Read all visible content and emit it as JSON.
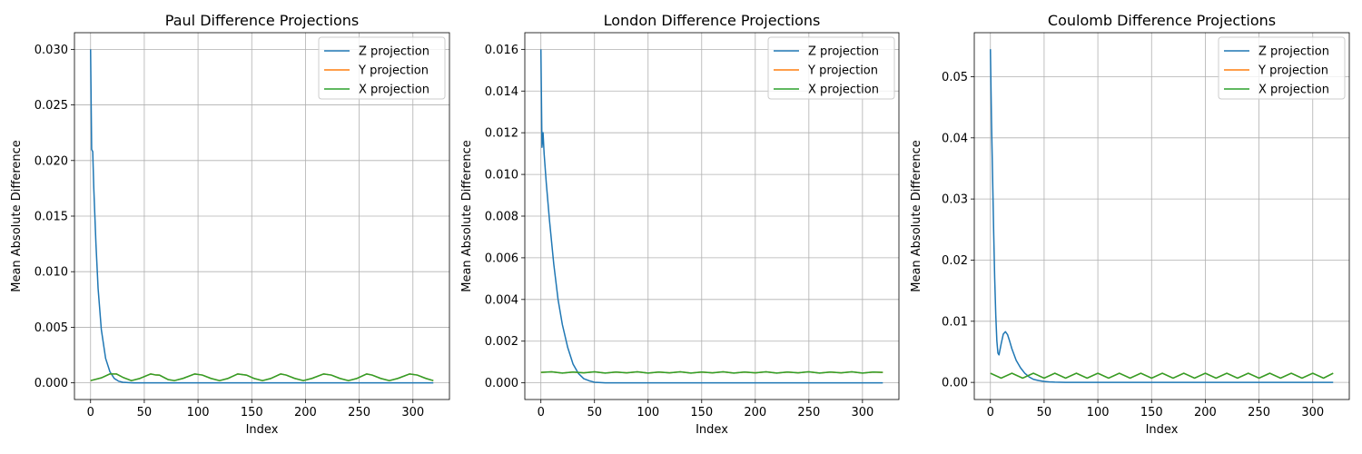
{
  "figure": {
    "background": "#ffffff"
  },
  "chart_data": [
    {
      "type": "line",
      "title": "Paul Difference Projections",
      "xlabel": "Index",
      "ylabel": "Mean Absolute Difference",
      "xlim": [
        -15,
        334
      ],
      "ylim": [
        -0.0015,
        0.0315
      ],
      "xticks": [
        0,
        50,
        100,
        150,
        200,
        250,
        300
      ],
      "xtick_labels": [
        "0",
        "50",
        "100",
        "150",
        "200",
        "250",
        "300"
      ],
      "yticks": [
        0.0,
        0.005,
        0.01,
        0.015,
        0.02,
        0.025,
        0.03
      ],
      "ytick_labels": [
        "0.000",
        "0.005",
        "0.010",
        "0.015",
        "0.020",
        "0.025",
        "0.030"
      ],
      "grid": true,
      "legend_position": "top-right",
      "series": [
        {
          "name": "Z projection",
          "color": "#1f77b4",
          "x": [
            0,
            1,
            2,
            3,
            5,
            7,
            10,
            14,
            18,
            22,
            26,
            30,
            35,
            40,
            60,
            100,
            150,
            200,
            250,
            300,
            319
          ],
          "y": [
            0.03,
            0.021,
            0.0208,
            0.0175,
            0.0125,
            0.0085,
            0.0048,
            0.0022,
            0.001,
            0.0004,
            0.00015,
            5e-05,
            2e-05,
            0.0,
            0.0,
            0.0,
            0.0,
            0.0,
            0.0,
            0.0,
            0.0
          ]
        },
        {
          "name": "Y projection",
          "color": "#ff7f0e",
          "x": [
            0,
            10,
            18,
            24,
            30,
            38,
            46,
            56,
            60,
            64,
            72,
            78,
            86,
            97,
            104,
            112,
            120,
            128,
            137,
            145,
            152,
            160,
            168,
            177,
            182,
            190,
            198,
            206,
            217,
            224,
            232,
            240,
            248,
            257,
            262,
            270,
            278,
            286,
            297,
            304,
            312,
            319
          ],
          "y": [
            0.0002,
            0.00045,
            0.0008,
            0.0008,
            0.0005,
            0.0002,
            0.0004,
            0.0008,
            0.00072,
            0.0007,
            0.0003,
            0.0002,
            0.0004,
            0.0008,
            0.0007,
            0.0004,
            0.0002,
            0.0004,
            0.0008,
            0.0007,
            0.0004,
            0.0002,
            0.0004,
            0.0008,
            0.0007,
            0.0004,
            0.0002,
            0.0004,
            0.0008,
            0.0007,
            0.0004,
            0.0002,
            0.0004,
            0.0008,
            0.0007,
            0.0004,
            0.0002,
            0.0004,
            0.0008,
            0.0007,
            0.0004,
            0.0002
          ]
        },
        {
          "name": "X projection",
          "color": "#2ca02c",
          "x": [
            0,
            10,
            18,
            24,
            30,
            38,
            46,
            56,
            60,
            64,
            72,
            78,
            86,
            97,
            104,
            112,
            120,
            128,
            137,
            145,
            152,
            160,
            168,
            177,
            182,
            190,
            198,
            206,
            217,
            224,
            232,
            240,
            248,
            257,
            262,
            270,
            278,
            286,
            297,
            304,
            312,
            319
          ],
          "y": [
            0.0002,
            0.00045,
            0.0008,
            0.0008,
            0.0005,
            0.0002,
            0.0004,
            0.0008,
            0.00072,
            0.0007,
            0.0003,
            0.0002,
            0.0004,
            0.0008,
            0.0007,
            0.0004,
            0.0002,
            0.0004,
            0.0008,
            0.0007,
            0.0004,
            0.0002,
            0.0004,
            0.0008,
            0.0007,
            0.0004,
            0.0002,
            0.0004,
            0.0008,
            0.0007,
            0.0004,
            0.0002,
            0.0004,
            0.0008,
            0.0007,
            0.0004,
            0.0002,
            0.0004,
            0.0008,
            0.0007,
            0.0004,
            0.0002
          ]
        }
      ]
    },
    {
      "type": "line",
      "title": "London Difference Projections",
      "xlabel": "Index",
      "ylabel": "Mean Absolute Difference",
      "xlim": [
        -15,
        334
      ],
      "ylim": [
        -0.0008,
        0.0168
      ],
      "xticks": [
        0,
        50,
        100,
        150,
        200,
        250,
        300
      ],
      "xtick_labels": [
        "0",
        "50",
        "100",
        "150",
        "200",
        "250",
        "300"
      ],
      "yticks": [
        0.0,
        0.002,
        0.004,
        0.006,
        0.008,
        0.01,
        0.012,
        0.014,
        0.016
      ],
      "ytick_labels": [
        "0.000",
        "0.002",
        "0.004",
        "0.006",
        "0.008",
        "0.010",
        "0.012",
        "0.014",
        "0.016"
      ],
      "grid": true,
      "legend_position": "top-right",
      "series": [
        {
          "name": "Z projection",
          "color": "#1f77b4",
          "x": [
            0,
            1,
            2,
            3,
            5,
            8,
            12,
            16,
            20,
            25,
            30,
            35,
            40,
            45,
            50,
            60,
            100,
            150,
            200,
            250,
            300,
            319
          ],
          "y": [
            0.016,
            0.0113,
            0.012,
            0.011,
            0.0096,
            0.0078,
            0.0057,
            0.004,
            0.0028,
            0.0017,
            0.0009,
            0.00045,
            0.0002,
            0.0001,
            3e-05,
            0.0,
            0.0,
            0.0,
            0.0,
            0.0,
            0.0,
            0.0
          ]
        },
        {
          "name": "Y projection",
          "color": "#ff7f0e",
          "x": [
            0,
            10,
            20,
            30,
            40,
            50,
            60,
            70,
            80,
            90,
            100,
            110,
            120,
            130,
            140,
            150,
            160,
            170,
            180,
            190,
            200,
            210,
            220,
            230,
            240,
            250,
            260,
            270,
            280,
            290,
            300,
            310,
            319
          ],
          "y": [
            0.0005,
            0.00053,
            0.00047,
            0.00052,
            0.00048,
            0.00053,
            0.00047,
            0.00052,
            0.00048,
            0.00053,
            0.00047,
            0.00052,
            0.00048,
            0.00053,
            0.00047,
            0.00052,
            0.00048,
            0.00053,
            0.00047,
            0.00052,
            0.00048,
            0.00053,
            0.00047,
            0.00052,
            0.00048,
            0.00053,
            0.00047,
            0.00052,
            0.00048,
            0.00053,
            0.00047,
            0.00052,
            0.0005
          ]
        },
        {
          "name": "X projection",
          "color": "#2ca02c",
          "x": [
            0,
            10,
            20,
            30,
            40,
            50,
            60,
            70,
            80,
            90,
            100,
            110,
            120,
            130,
            140,
            150,
            160,
            170,
            180,
            190,
            200,
            210,
            220,
            230,
            240,
            250,
            260,
            270,
            280,
            290,
            300,
            310,
            319
          ],
          "y": [
            0.0005,
            0.00053,
            0.00047,
            0.00052,
            0.00048,
            0.00053,
            0.00047,
            0.00052,
            0.00048,
            0.00053,
            0.00047,
            0.00052,
            0.00048,
            0.00053,
            0.00047,
            0.00052,
            0.00048,
            0.00053,
            0.00047,
            0.00052,
            0.00048,
            0.00053,
            0.00047,
            0.00052,
            0.00048,
            0.00053,
            0.00047,
            0.00052,
            0.00048,
            0.00053,
            0.00047,
            0.00052,
            0.0005
          ]
        }
      ]
    },
    {
      "type": "line",
      "title": "Coulomb Difference Projections",
      "xlabel": "Index",
      "ylabel": "Mean Absolute Difference",
      "xlim": [
        -15,
        334
      ],
      "ylim": [
        -0.0028,
        0.0572
      ],
      "xticks": [
        0,
        50,
        100,
        150,
        200,
        250,
        300
      ],
      "xtick_labels": [
        "0",
        "50",
        "100",
        "150",
        "200",
        "250",
        "300"
      ],
      "yticks": [
        0.0,
        0.01,
        0.02,
        0.03,
        0.04,
        0.05
      ],
      "ytick_labels": [
        "0.00",
        "0.01",
        "0.02",
        "0.03",
        "0.04",
        "0.05"
      ],
      "grid": true,
      "legend_position": "top-right",
      "series": [
        {
          "name": "Z projection",
          "color": "#1f77b4",
          "x": [
            0,
            1,
            2,
            3,
            4,
            5,
            6,
            7,
            8,
            10,
            12,
            14,
            16,
            18,
            20,
            24,
            28,
            32,
            36,
            40,
            45,
            50,
            55,
            60,
            70,
            100,
            150,
            200,
            250,
            300,
            319
          ],
          "y": [
            0.0545,
            0.043,
            0.034,
            0.025,
            0.017,
            0.011,
            0.0068,
            0.0048,
            0.0045,
            0.0063,
            0.0079,
            0.0083,
            0.0078,
            0.0067,
            0.0055,
            0.0036,
            0.0024,
            0.0015,
            0.0009,
            0.0005,
            0.0003,
            0.00015,
            8e-05,
            4e-05,
            1e-05,
            0.0,
            0.0,
            0.0,
            0.0,
            0.0,
            0.0
          ]
        },
        {
          "name": "Y projection",
          "color": "#ff7f0e",
          "x": [
            0,
            10,
            20,
            30,
            40,
            50,
            60,
            70,
            80,
            90,
            100,
            110,
            120,
            130,
            140,
            150,
            160,
            170,
            180,
            190,
            200,
            210,
            220,
            230,
            240,
            250,
            260,
            270,
            280,
            290,
            300,
            310,
            319
          ],
          "y": [
            0.0015,
            0.0007,
            0.0015,
            0.0007,
            0.0015,
            0.0007,
            0.0015,
            0.0007,
            0.0015,
            0.0007,
            0.0015,
            0.0007,
            0.0015,
            0.0007,
            0.0015,
            0.0007,
            0.0015,
            0.0007,
            0.0015,
            0.0007,
            0.0015,
            0.0007,
            0.0015,
            0.0007,
            0.0015,
            0.0007,
            0.0015,
            0.0007,
            0.0015,
            0.0007,
            0.0015,
            0.0007,
            0.0015
          ]
        },
        {
          "name": "X projection",
          "color": "#2ca02c",
          "x": [
            0,
            10,
            20,
            30,
            40,
            50,
            60,
            70,
            80,
            90,
            100,
            110,
            120,
            130,
            140,
            150,
            160,
            170,
            180,
            190,
            200,
            210,
            220,
            230,
            240,
            250,
            260,
            270,
            280,
            290,
            300,
            310,
            319
          ],
          "y": [
            0.0015,
            0.0007,
            0.0015,
            0.0007,
            0.0015,
            0.0007,
            0.0015,
            0.0007,
            0.0015,
            0.0007,
            0.0015,
            0.0007,
            0.0015,
            0.0007,
            0.0015,
            0.0007,
            0.0015,
            0.0007,
            0.0015,
            0.0007,
            0.0015,
            0.0007,
            0.0015,
            0.0007,
            0.0015,
            0.0007,
            0.0015,
            0.0007,
            0.0015,
            0.0007,
            0.0015,
            0.0007,
            0.0015
          ]
        }
      ]
    }
  ]
}
